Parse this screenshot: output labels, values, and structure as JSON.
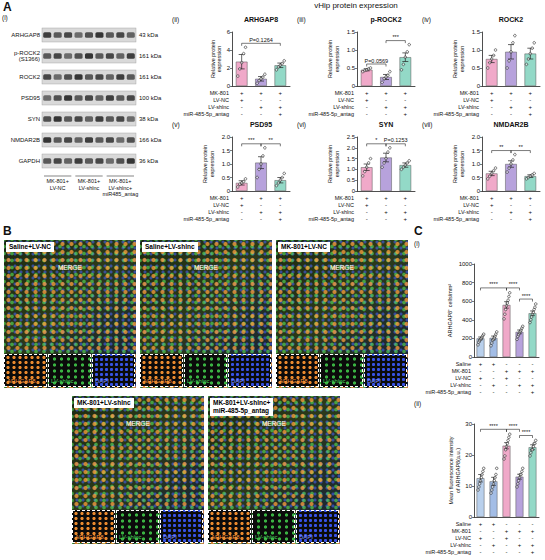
{
  "figure": {
    "panels": [
      {
        "letter": "A",
        "heading": "vHip protein expression"
      },
      {
        "letter": "B"
      },
      {
        "letter": "C"
      }
    ],
    "blot": {
      "panel": "A",
      "subtitle": "(i)",
      "rows": [
        {
          "protein": "ARHGAP8",
          "size": "43 kDa"
        },
        {
          "protein": "p-ROCK2 (S1366)",
          "size": "161 kDa"
        },
        {
          "protein": "ROCK2",
          "size": "161 kDa"
        },
        {
          "protein": "PSD95",
          "size": "100 kDa"
        },
        {
          "protein": "SYN",
          "size": "38 kDa"
        },
        {
          "protein": "NMDAR2B",
          "size": "166 kDa"
        },
        {
          "protein": "GAPDH",
          "size": "36 kDa"
        }
      ],
      "lanes": [
        "MK-801+LV-NC",
        "MK-801+LV-shlnc",
        "MK-801+LV-shlnc+miR485_antag"
      ]
    },
    "images": {
      "panel": "B",
      "merge_label": "MERGE",
      "channels": [
        "ARHGAP8",
        "LV-shlnc",
        "DAPI"
      ],
      "titles": [
        "Saline+LV-NC",
        "Saline+LV-shlnc",
        "MK-801+LV-NC",
        "MK-801+LV-shlnc",
        "MK-801+LV-shlnc+miR-485-5p_antag"
      ]
    }
  },
  "chart_data": [
    {
      "type": "bar",
      "panel": "A",
      "subtitle": "(ii)",
      "title": "ARHGAP8",
      "y_label": "Relative protein expression",
      "categories": [
        null,
        null,
        null
      ],
      "values": [
        2.7,
        0.8,
        2.3
      ],
      "errors": [
        0.8,
        0.25,
        0.25
      ],
      "points": [
        [
          1.1,
          1.9,
          2.6,
          3.6,
          4.3
        ],
        [
          0.3,
          0.6,
          0.8,
          1.0,
          1.3
        ],
        [
          1.8,
          2.1,
          2.3,
          2.5,
          2.8
        ]
      ],
      "colors": [
        "#f0a9c9",
        "#b7a2dc",
        "#93d9c7"
      ],
      "conditions": [
        {
          "label": "MK-801",
          "signs": [
            "+",
            "+",
            "+"
          ]
        },
        {
          "label": "LV-NC",
          "signs": [
            "+",
            "-",
            "-"
          ]
        },
        {
          "label": "LV-shlnc",
          "signs": [
            "-",
            "+",
            "+"
          ]
        },
        {
          "label": "miR-485-5p_antag",
          "signs": [
            "-",
            "-",
            "+"
          ]
        }
      ],
      "annotations": [
        {
          "from": 0,
          "to": 2,
          "text": "P=0.1264"
        }
      ],
      "ylim": [
        0,
        6
      ],
      "yticks": [
        0,
        2,
        4,
        6
      ],
      "grid": false
    },
    {
      "type": "bar",
      "panel": "A",
      "subtitle": "(iii)",
      "title": "p-ROCK2",
      "y_label": "Relative protein expression",
      "categories": [
        null,
        null,
        null
      ],
      "values": [
        0.45,
        0.25,
        0.8
      ],
      "errors": [
        0.03,
        0.07,
        0.12
      ],
      "points": [
        [
          0.4,
          0.43,
          0.45,
          0.48,
          0.5
        ],
        [
          0.1,
          0.2,
          0.25,
          0.3,
          0.4
        ],
        [
          0.45,
          0.6,
          0.8,
          0.95,
          1.15
        ]
      ],
      "colors": [
        "#f0a9c9",
        "#b7a2dc",
        "#93d9c7"
      ],
      "conditions": [
        {
          "label": "MK-801",
          "signs": [
            "+",
            "+",
            "+"
          ]
        },
        {
          "label": "LV-NC",
          "signs": [
            "+",
            "-",
            "-"
          ]
        },
        {
          "label": "LV-shlnc",
          "signs": [
            "-",
            "+",
            "+"
          ]
        },
        {
          "label": "miR-485-5p_antag",
          "signs": [
            "-",
            "-",
            "+"
          ]
        }
      ],
      "annotations": [
        {
          "from": 0,
          "to": 1,
          "text": "P=0.0569"
        },
        {
          "from": 1,
          "to": 2,
          "text": "***"
        }
      ],
      "ylim": [
        0,
        1.5
      ],
      "yticks": [
        0,
        0.5,
        {
          "value": 1,
          "label": "1.0"
        },
        1.5
      ],
      "grid": false
    },
    {
      "type": "bar",
      "panel": "A",
      "subtitle": "(iv)",
      "title": "ROCK2",
      "y_label": "Relative protein expression",
      "categories": [
        null,
        null,
        null
      ],
      "values": [
        0.75,
        0.95,
        0.9
      ],
      "errors": [
        0.1,
        0.2,
        0.15
      ],
      "points": [
        [
          0.5,
          0.65,
          0.75,
          0.85,
          1.0
        ],
        [
          0.5,
          0.7,
          0.95,
          1.2,
          1.4
        ],
        [
          0.6,
          0.75,
          0.9,
          1.05,
          1.2
        ]
      ],
      "colors": [
        "#f0a9c9",
        "#b7a2dc",
        "#93d9c7"
      ],
      "conditions": [
        {
          "label": "MK-801",
          "signs": [
            "+",
            "+",
            "+"
          ]
        },
        {
          "label": "LV-NC",
          "signs": [
            "+",
            "-",
            "-"
          ]
        },
        {
          "label": "LV-shlnc",
          "signs": [
            "-",
            "+",
            "+"
          ]
        },
        {
          "label": "miR-485-5p_antag",
          "signs": [
            "-",
            "-",
            "+"
          ]
        }
      ],
      "annotations": [],
      "ylim": [
        0,
        1.5
      ],
      "yticks": [
        0,
        0.5,
        {
          "value": 1,
          "label": "1.0"
        },
        1.5
      ],
      "grid": false
    },
    {
      "type": "bar",
      "panel": "A",
      "subtitle": "(v)",
      "title": "PSD95",
      "y_label": "Relative protein expression",
      "categories": [
        null,
        null,
        null
      ],
      "values": [
        0.3,
        1.05,
        0.4
      ],
      "errors": [
        0.08,
        0.22,
        0.1
      ],
      "points": [
        [
          0.15,
          0.25,
          0.3,
          0.35,
          0.45
        ],
        [
          0.5,
          0.8,
          1.0,
          1.3,
          1.6
        ],
        [
          0.2,
          0.3,
          0.4,
          0.5,
          0.65
        ]
      ],
      "colors": [
        "#f0a9c9",
        "#b7a2dc",
        "#93d9c7"
      ],
      "conditions": [
        {
          "label": "MK-801",
          "signs": [
            "+",
            "+",
            "+"
          ]
        },
        {
          "label": "LV-NC",
          "signs": [
            "+",
            "-",
            "-"
          ]
        },
        {
          "label": "LV-shlnc",
          "signs": [
            "-",
            "+",
            "+"
          ]
        },
        {
          "label": "miR-485-5p_antag",
          "signs": [
            "-",
            "-",
            "+"
          ]
        }
      ],
      "annotations": [
        {
          "from": 0,
          "to": 1,
          "text": "***"
        },
        {
          "from": 1,
          "to": 2,
          "text": "**"
        }
      ],
      "ylim": [
        0,
        2
      ],
      "yticks": [
        0,
        0.5,
        {
          "value": 1,
          "label": "1.0"
        },
        1.5,
        {
          "value": 2,
          "label": "2.0"
        }
      ],
      "grid": false
    },
    {
      "type": "bar",
      "panel": "A",
      "subtitle": "(vi)",
      "title": "SYN",
      "y_label": "Relative protein expression",
      "categories": [
        null,
        null,
        null
      ],
      "values": [
        1.1,
        1.55,
        1.2
      ],
      "errors": [
        0.15,
        0.2,
        0.1
      ],
      "points": [
        [
          0.7,
          0.9,
          1.1,
          1.3,
          1.5
        ],
        [
          1.1,
          1.3,
          1.5,
          1.8,
          2.0
        ],
        [
          1.0,
          1.1,
          1.2,
          1.3,
          1.4
        ]
      ],
      "colors": [
        "#f0a9c9",
        "#b7a2dc",
        "#93d9c7"
      ],
      "conditions": [
        {
          "label": "MK-801",
          "signs": [
            "+",
            "+",
            "+"
          ]
        },
        {
          "label": "LV-NC",
          "signs": [
            "+",
            "-",
            "-"
          ]
        },
        {
          "label": "LV-shlnc",
          "signs": [
            "-",
            "+",
            "+"
          ]
        },
        {
          "label": "miR-485-5p_antag",
          "signs": [
            "-",
            "-",
            "+"
          ]
        }
      ],
      "annotations": [
        {
          "from": 0,
          "to": 1,
          "text": "*"
        },
        {
          "from": 1,
          "to": 2,
          "text": "P=0.1253"
        }
      ],
      "ylim": [
        0,
        2.5
      ],
      "yticks": [
        0,
        0.5,
        {
          "value": 1,
          "label": "1.0"
        },
        1.5,
        {
          "value": 2,
          "label": "2.0"
        },
        2.5
      ],
      "grid": false
    },
    {
      "type": "bar",
      "panel": "A",
      "subtitle": "(vii)",
      "title": "NMDAR2B",
      "y_label": "Relative protein expression",
      "categories": [
        null,
        null,
        null
      ],
      "values": [
        0.65,
        1.0,
        0.55
      ],
      "errors": [
        0.08,
        0.12,
        0.05
      ],
      "points": [
        [
          0.45,
          0.55,
          0.65,
          0.75,
          0.85
        ],
        [
          0.7,
          0.85,
          1.0,
          1.15,
          1.35
        ],
        [
          0.45,
          0.5,
          0.55,
          0.6,
          0.65
        ]
      ],
      "colors": [
        "#f0a9c9",
        "#b7a2dc",
        "#93d9c7"
      ],
      "conditions": [
        {
          "label": "MK-801",
          "signs": [
            "+",
            "+",
            "+"
          ]
        },
        {
          "label": "LV-NC",
          "signs": [
            "+",
            "-",
            "-"
          ]
        },
        {
          "label": "LV-shlnc",
          "signs": [
            "-",
            "+",
            "+"
          ]
        },
        {
          "label": "miR-485-5p_antag",
          "signs": [
            "-",
            "-",
            "+"
          ]
        }
      ],
      "annotations": [
        {
          "from": 0,
          "to": 1,
          "text": "**"
        },
        {
          "from": 1,
          "to": 2,
          "text": "**"
        }
      ],
      "ylim": [
        0,
        2
      ],
      "yticks": [
        0,
        0.5,
        {
          "value": 1,
          "label": "1.0"
        },
        1.5,
        {
          "value": 2,
          "label": "2.0"
        }
      ],
      "grid": false
    },
    {
      "type": "bar",
      "panel": "C",
      "subtitle": "(i)",
      "y_label": "ARHGAP8⁺ cells/mm²",
      "categories": [
        null,
        null,
        null,
        null,
        null
      ],
      "values": [
        200,
        205,
        560,
        270,
        470
      ],
      "errors": [
        15,
        20,
        35,
        20,
        25
      ],
      "points": [
        [
          140,
          170,
          185,
          200,
          210,
          225,
          240,
          255
        ],
        [
          130,
          160,
          190,
          200,
          215,
          235,
          255,
          280
        ],
        [
          420,
          470,
          520,
          560,
          590,
          620,
          660,
          700
        ],
        [
          200,
          230,
          250,
          270,
          285,
          300,
          320,
          340
        ],
        [
          380,
          410,
          440,
          470,
          490,
          520,
          545,
          580
        ]
      ],
      "colors": [
        "#b9d0ec",
        "#a3bde6",
        "#f0a9c9",
        "#b7a2dc",
        "#93d9c7"
      ],
      "conditions": [
        {
          "label": "Saline",
          "signs": [
            "+",
            "+",
            "-",
            "-",
            "-"
          ]
        },
        {
          "label": "MK-801",
          "signs": [
            "-",
            "-",
            "+",
            "+",
            "+"
          ]
        },
        {
          "label": "LV-NC",
          "signs": [
            "+",
            "-",
            "+",
            "-",
            "-"
          ]
        },
        {
          "label": "LV-shlnc",
          "signs": [
            "-",
            "+",
            "-",
            "+",
            "+"
          ]
        },
        {
          "label": "miR-485-5p_antag",
          "signs": [
            "-",
            "-",
            "-",
            "-",
            "+"
          ]
        }
      ],
      "annotations": [
        {
          "from": 0,
          "to": 2,
          "text": "****"
        },
        {
          "from": 2,
          "to": 3,
          "text": "****"
        },
        {
          "from": 3,
          "to": 4,
          "text": "****"
        }
      ],
      "ylim": [
        0,
        1000
      ],
      "yticks": [
        0,
        200,
        400,
        600,
        800,
        1000
      ],
      "grid": false
    },
    {
      "type": "bar",
      "panel": "C",
      "subtitle": "(ii)",
      "y_label": "Mean fluorescence intensity of ARHGAP8(a.u.)",
      "categories": [
        null,
        null,
        null,
        null,
        null
      ],
      "values": [
        12.5,
        11.5,
        23,
        13,
        22.5
      ],
      "errors": [
        1.2,
        1.3,
        1.0,
        0.8,
        0.8
      ],
      "points": [
        [
          9,
          10,
          11,
          12,
          13,
          14,
          15,
          16
        ],
        [
          8,
          9,
          10,
          11,
          12,
          13,
          14,
          16
        ],
        [
          19,
          20,
          22,
          23,
          24,
          25,
          26,
          27
        ],
        [
          10,
          11,
          12,
          13,
          14,
          14,
          15,
          16
        ],
        [
          20,
          21,
          22,
          22,
          23,
          24,
          24,
          25
        ]
      ],
      "colors": [
        "#b9d0ec",
        "#a3bde6",
        "#f0a9c9",
        "#b7a2dc",
        "#93d9c7"
      ],
      "conditions": [
        {
          "label": "Saline",
          "signs": [
            "+",
            "+",
            "-",
            "-",
            "-"
          ]
        },
        {
          "label": "MK-801",
          "signs": [
            "-",
            "-",
            "+",
            "+",
            "+"
          ]
        },
        {
          "label": "LV-NC",
          "signs": [
            "+",
            "-",
            "+",
            "-",
            "-"
          ]
        },
        {
          "label": "LV-shlnc",
          "signs": [
            "-",
            "+",
            "-",
            "+",
            "+"
          ]
        },
        {
          "label": "miR-485-5p_antag",
          "signs": [
            "-",
            "-",
            "-",
            "-",
            "+"
          ]
        }
      ],
      "annotations": [
        {
          "from": 0,
          "to": 2,
          "text": "****"
        },
        {
          "from": 2,
          "to": 3,
          "text": "****"
        },
        {
          "from": 3,
          "to": 4,
          "text": "****"
        }
      ],
      "ylim": [
        0,
        30
      ],
      "yticks": [
        0,
        10,
        20,
        30
      ],
      "grid": false
    }
  ]
}
